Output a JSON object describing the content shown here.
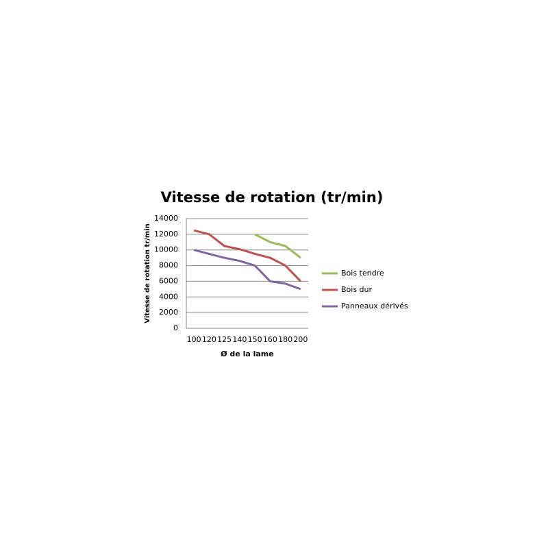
{
  "chart_data": {
    "type": "line",
    "title": "Vitesse de rotation (tr/min)",
    "x_label": "Ø de la lame",
    "y_label": "Vitesse de rotation tr/min",
    "categories": [
      "100",
      "120",
      "125",
      "140",
      "150",
      "160",
      "180",
      "200"
    ],
    "series": [
      {
        "name": "Bois tendre",
        "color": "#9bbb59",
        "values": [
          null,
          null,
          null,
          null,
          12000,
          11000,
          10500,
          9000
        ]
      },
      {
        "name": "Bois dur",
        "color": "#c0504d",
        "values": [
          12500,
          12000,
          10500,
          10100,
          9500,
          9000,
          8000,
          6000
        ]
      },
      {
        "name": "Panneaux dérivés",
        "color": "#8064a2",
        "values": [
          10000,
          9500,
          9000,
          8600,
          8000,
          6000,
          5700,
          5000
        ]
      }
    ],
    "ylim": [
      0,
      14000
    ],
    "yticks": [
      0,
      2000,
      4000,
      6000,
      8000,
      10000,
      12000,
      14000
    ],
    "grid": true,
    "legend": "right"
  }
}
